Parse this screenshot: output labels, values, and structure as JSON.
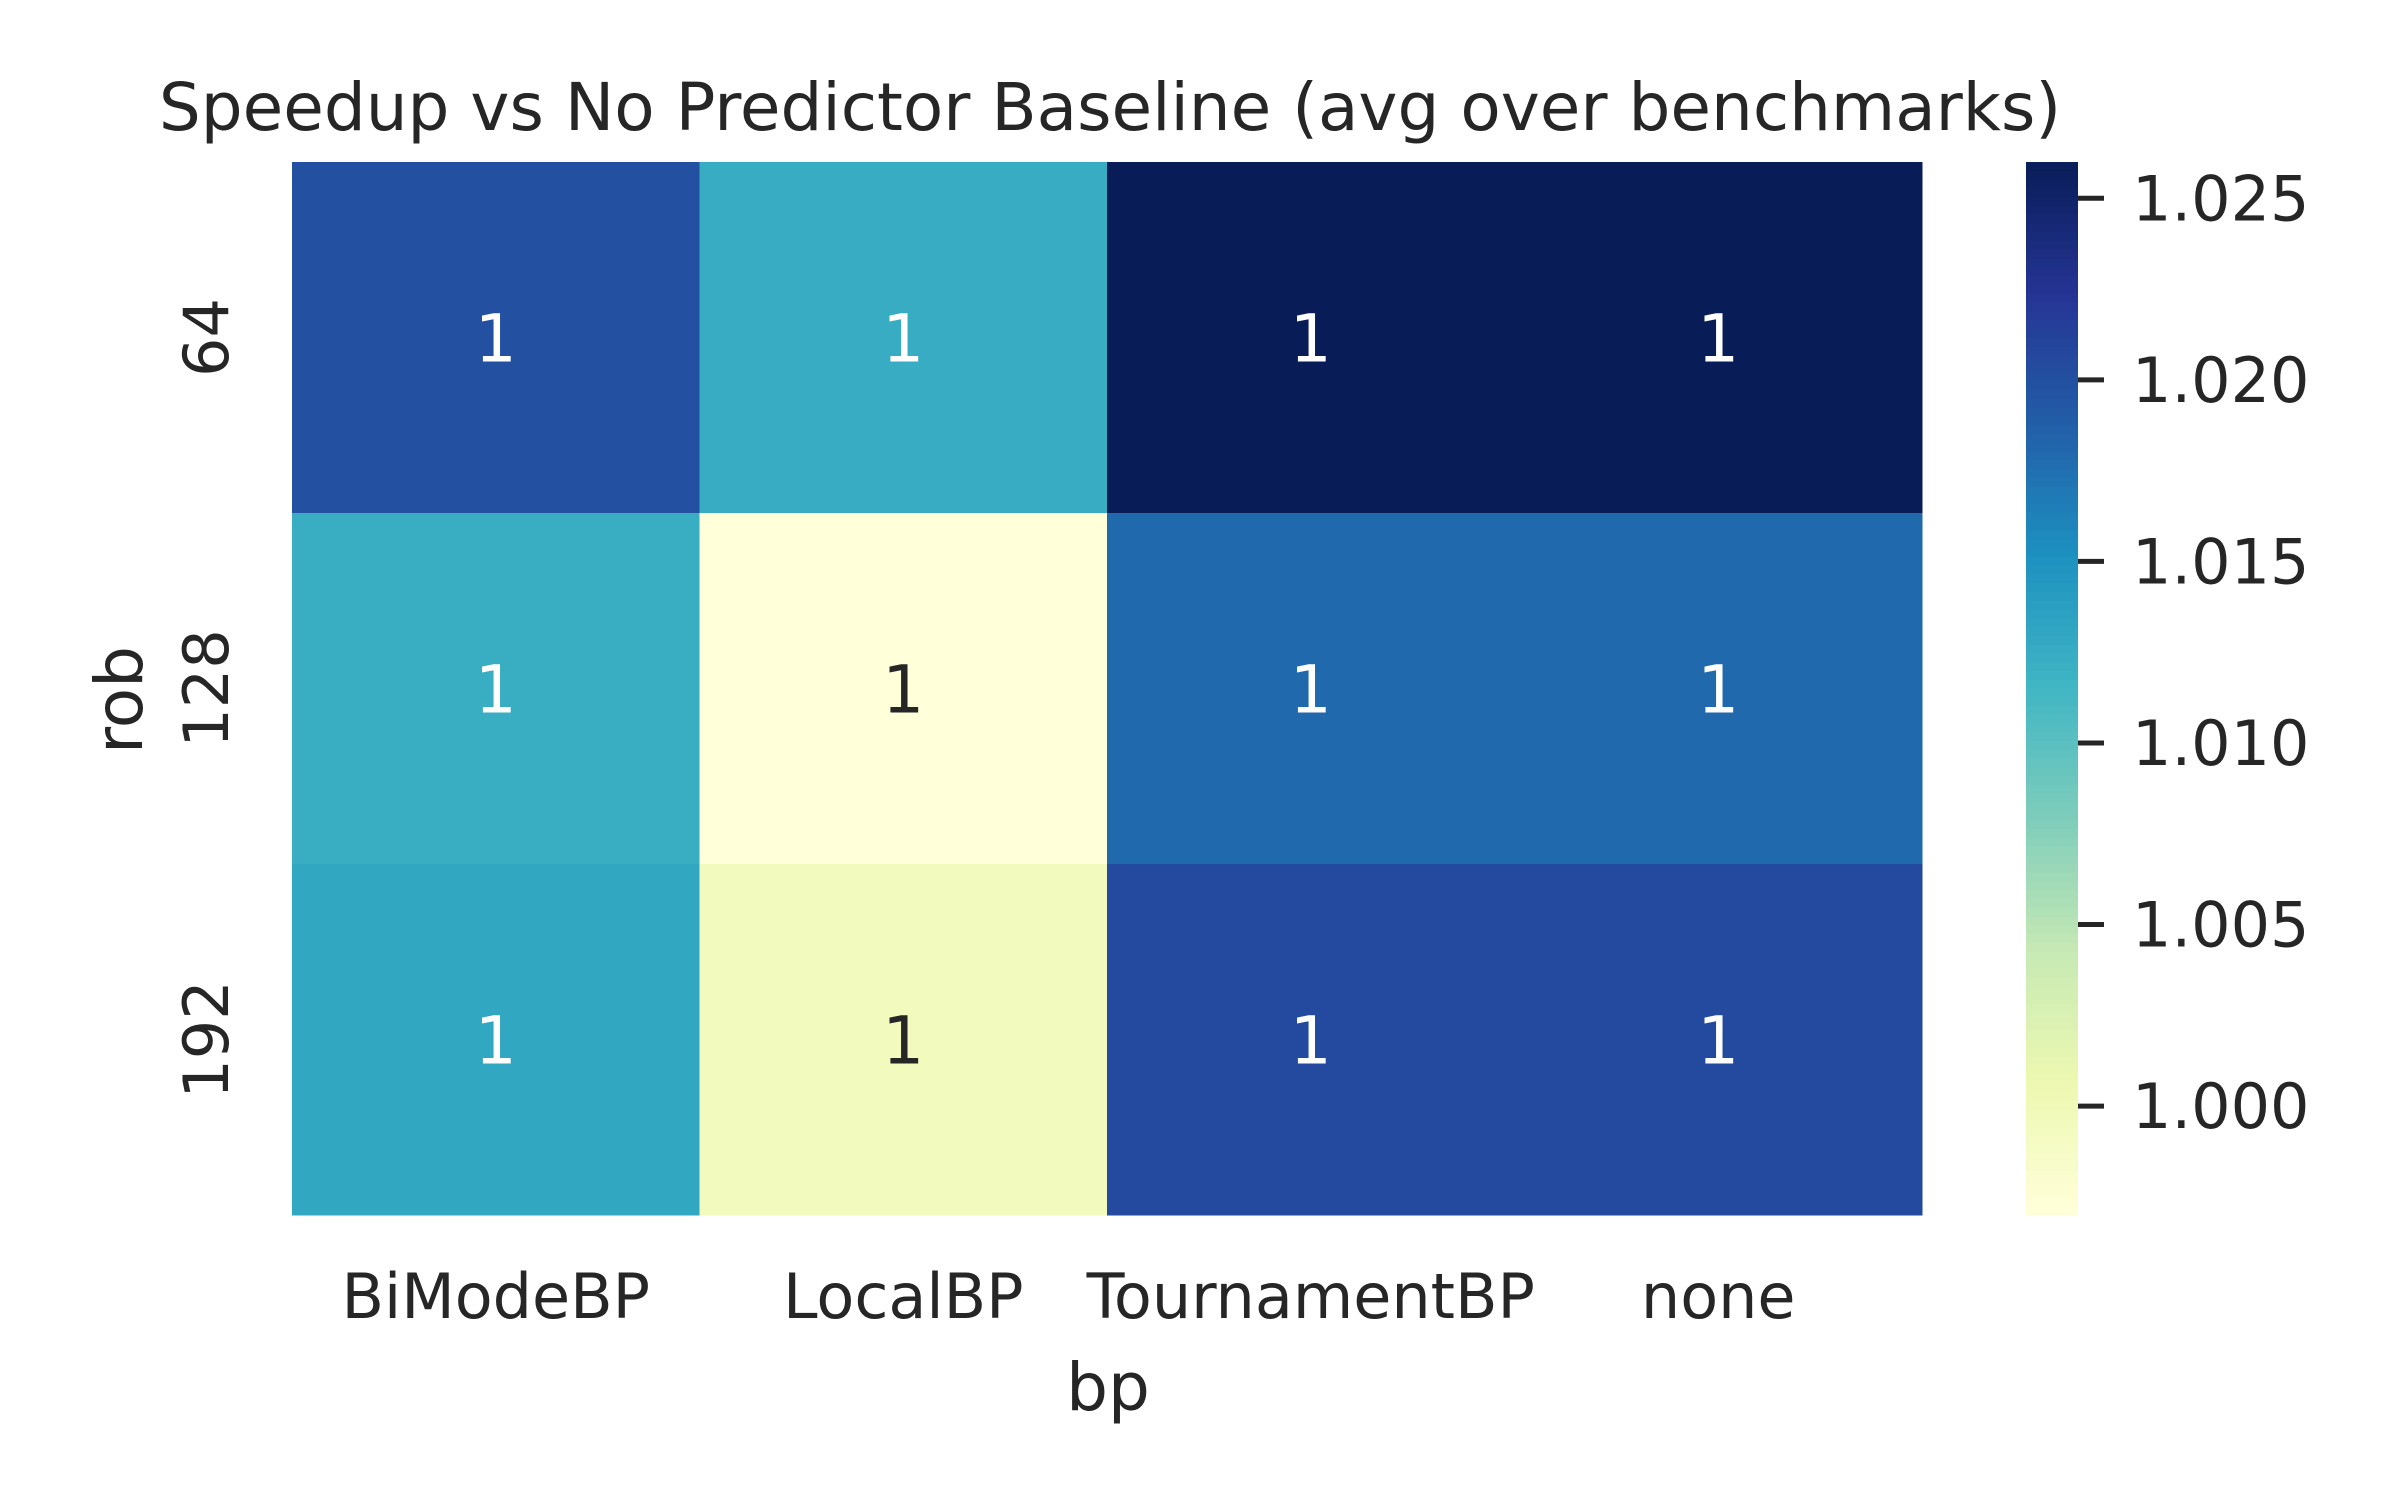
{
  "chart_data": {
    "type": "heatmap",
    "title": "Speedup vs No Predictor Baseline (avg over benchmarks)",
    "xlabel": "bp",
    "ylabel": "rob",
    "x_categories": [
      "BiModeBP",
      "LocalBP",
      "TournamentBP",
      "none"
    ],
    "y_categories": [
      "64",
      "128",
      "192"
    ],
    "values": [
      [
        1.02,
        1.0125,
        1.026,
        1.026
      ],
      [
        1.0123,
        0.997,
        1.018,
        1.018
      ],
      [
        1.013,
        0.9995,
        1.0205,
        1.0205
      ]
    ],
    "cell_labels": [
      [
        "1",
        "1",
        "1",
        "1"
      ],
      [
        "1",
        "1",
        "1",
        "1"
      ],
      [
        "1",
        "1",
        "1",
        "1"
      ]
    ],
    "colorbar": {
      "colormap": "YlGnBu",
      "range": [
        0.997,
        1.026
      ],
      "ticks": [
        1.0,
        1.005,
        1.01,
        1.015,
        1.02,
        1.025
      ],
      "tick_labels": [
        "1.000",
        "1.005",
        "1.010",
        "1.015",
        "1.020",
        "1.025"
      ]
    },
    "grid": false,
    "legend": "colorbar-right"
  }
}
